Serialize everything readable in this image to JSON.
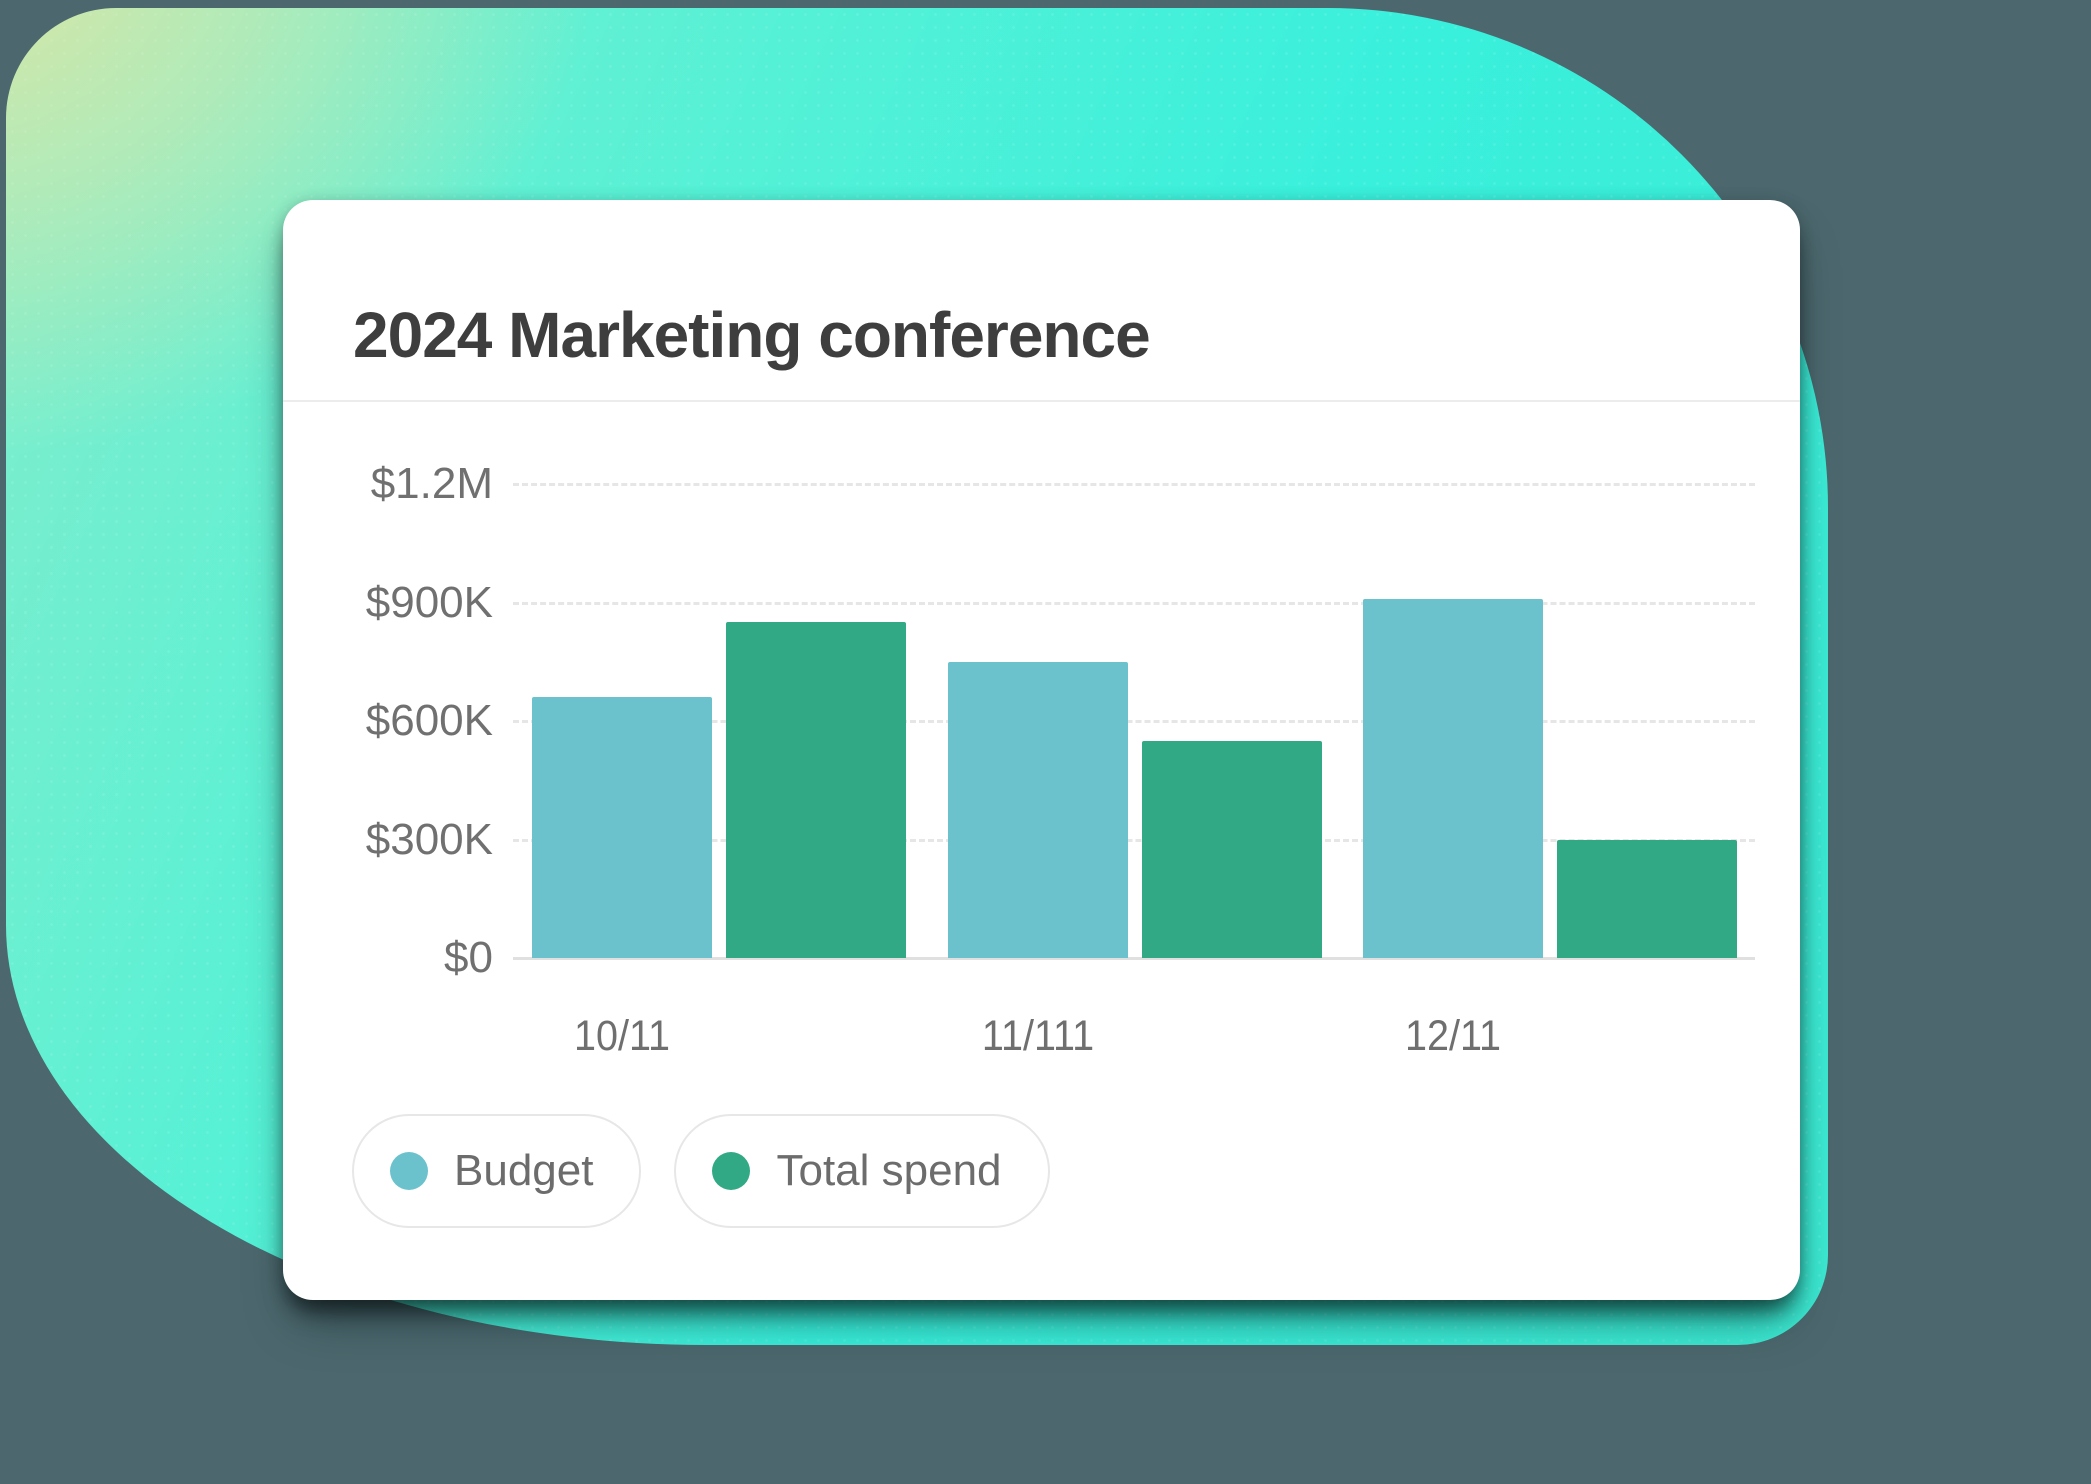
{
  "chart_data": {
    "type": "bar",
    "title": "2024 Marketing conference",
    "categories": [
      "10/11",
      "11/111",
      "12/11"
    ],
    "series": [
      {
        "name": "Budget",
        "color": "#6BC2CD",
        "values": [
          660000,
          750000,
          910000
        ]
      },
      {
        "name": "Total spend",
        "color": "#31A985",
        "values": [
          850000,
          550000,
          300000
        ]
      }
    ],
    "y_ticks": [
      "$1.2M",
      "$900K",
      "$600K",
      "$300K",
      "$0"
    ],
    "ylim": [
      0,
      1200000
    ],
    "grid": true,
    "legend_position": "bottom-left",
    "colors": {
      "card_background": "#FFFFFF",
      "page_background": "#4C686E",
      "blob_turquoise": "#3CEDD7",
      "blob_yellow_green": "#DDE3A3",
      "axis_text": "#707070",
      "title_text": "#3E3E3E",
      "gridline": "#E6E6E6"
    }
  }
}
